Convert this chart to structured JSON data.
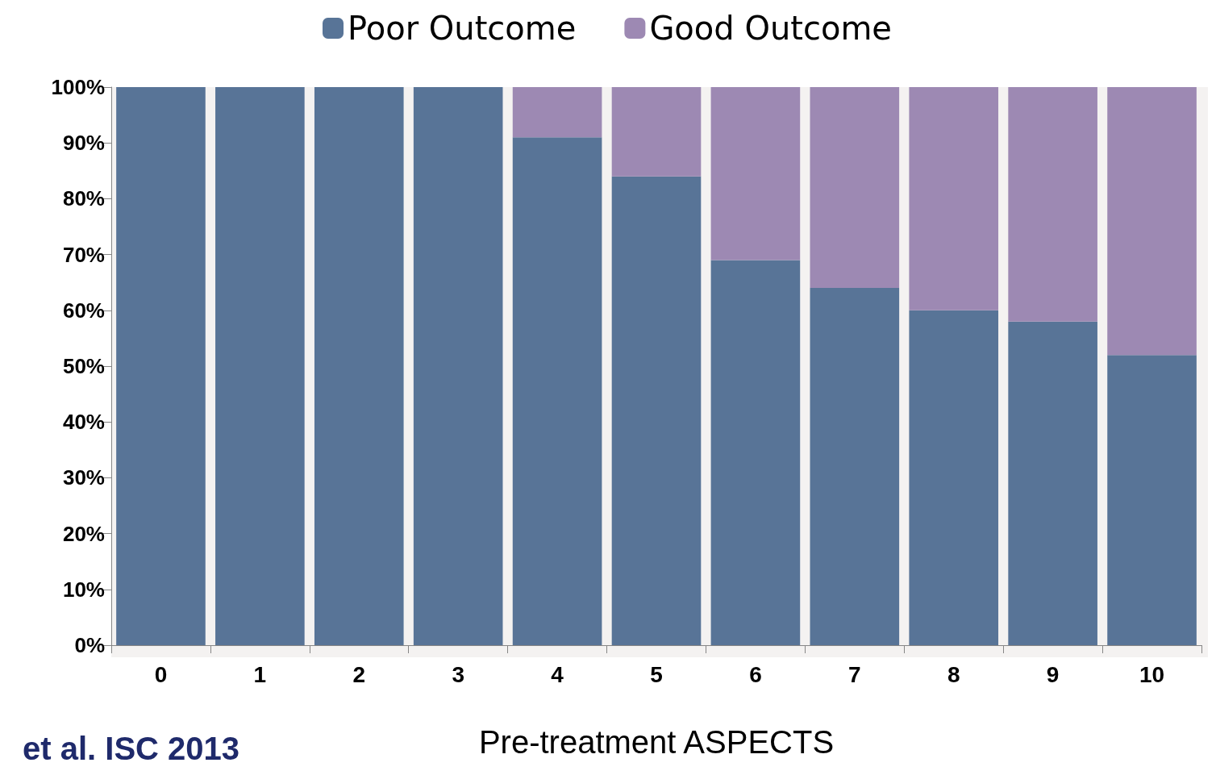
{
  "chart_data": {
    "type": "bar",
    "stacked": true,
    "xlabel": "Pre-treatment ASPECTS",
    "annotations": [
      "et al. ISC 2013"
    ],
    "categories": [
      "0",
      "1",
      "2",
      "3",
      "4",
      "5",
      "6",
      "7",
      "8",
      "9",
      "10"
    ],
    "series": [
      {
        "name": "Poor Outcome",
        "color": "#587497",
        "values": [
          100,
          100,
          100,
          100,
          91,
          84,
          69,
          64,
          60,
          58,
          52
        ]
      },
      {
        "name": "Good Outcome",
        "color": "#9d89b3",
        "values": [
          0,
          0,
          0,
          0,
          9,
          16,
          31,
          36,
          40,
          42,
          48
        ]
      }
    ],
    "ylim": [
      0,
      100
    ],
    "yticks": [
      {
        "value": 0,
        "label": "0%"
      },
      {
        "value": 10,
        "label": "10%"
      },
      {
        "value": 20,
        "label": "20%"
      },
      {
        "value": 30,
        "label": "30%"
      },
      {
        "value": 40,
        "label": "40%"
      },
      {
        "value": 50,
        "label": "50%"
      },
      {
        "value": 60,
        "label": "60%"
      },
      {
        "value": 70,
        "label": "70%"
      },
      {
        "value": 80,
        "label": "80%"
      },
      {
        "value": 90,
        "label": "90%"
      },
      {
        "value": 100,
        "label": "100%"
      }
    ],
    "grid": false,
    "legend": "top"
  }
}
